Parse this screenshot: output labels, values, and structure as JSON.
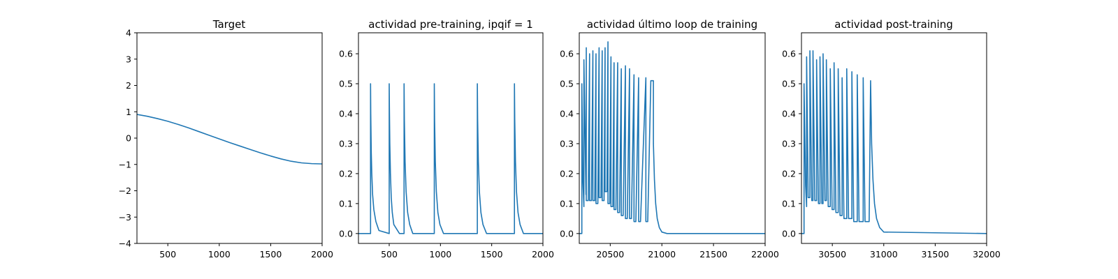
{
  "chart_data": [
    {
      "type": "line",
      "title": "Target",
      "xlim": [
        200,
        2000
      ],
      "ylim": [
        -4,
        4
      ],
      "xticks": [
        500,
        1000,
        1500,
        2000
      ],
      "yticks": [
        -4,
        -3,
        -2,
        -1,
        0,
        1,
        2,
        3,
        4
      ],
      "xtick_labels": [
        "500",
        "1000",
        "1500",
        "2000"
      ],
      "ytick_labels": [
        "−4",
        "−3",
        "−2",
        "−1",
        "0",
        "1",
        "2",
        "3",
        "4"
      ],
      "color": "#1f77b4",
      "series": [
        {
          "x": [
            200,
            300,
            400,
            500,
            600,
            700,
            800,
            900,
            1000,
            1100,
            1200,
            1300,
            1400,
            1500,
            1600,
            1700,
            1800,
            1900,
            2000
          ],
          "y": [
            0.9,
            0.83,
            0.74,
            0.64,
            0.52,
            0.39,
            0.25,
            0.11,
            -0.03,
            -0.17,
            -0.3,
            -0.43,
            -0.56,
            -0.68,
            -0.79,
            -0.88,
            -0.94,
            -0.97,
            -0.98
          ]
        }
      ]
    },
    {
      "type": "line",
      "title": "actividad pre-training, ipqif = 1",
      "xlim": [
        200,
        2000
      ],
      "ylim": [
        -0.033,
        0.67
      ],
      "xticks": [
        500,
        1000,
        1500,
        2000
      ],
      "yticks": [
        0.0,
        0.1,
        0.2,
        0.3,
        0.4,
        0.5,
        0.6
      ],
      "xtick_labels": [
        "500",
        "1000",
        "1500",
        "2000"
      ],
      "ytick_labels": [
        "0.0",
        "0.1",
        "0.2",
        "0.3",
        "0.4",
        "0.5",
        "0.6"
      ],
      "color": "#1f77b4",
      "series": [
        {
          "x": [
            200,
            318,
            318,
            320,
            325,
            330,
            338,
            350,
            370,
            400,
            500,
            500,
            502,
            506,
            512,
            520,
            530,
            545,
            600,
            645,
            645,
            648,
            655,
            665,
            680,
            700,
            730,
            940,
            940,
            943,
            950,
            960,
            975,
            995,
            1030,
            1360,
            1360,
            1363,
            1370,
            1380,
            1395,
            1415,
            1450,
            1722,
            1722,
            1725,
            1732,
            1742,
            1757,
            1777,
            1810,
            2000
          ],
          "y": [
            0.0,
            0.0,
            0.5,
            0.4,
            0.27,
            0.2,
            0.13,
            0.08,
            0.04,
            0.01,
            0.0,
            0.5,
            0.42,
            0.3,
            0.2,
            0.12,
            0.07,
            0.03,
            0.0,
            0.0,
            0.5,
            0.38,
            0.24,
            0.14,
            0.07,
            0.03,
            0.0,
            0.0,
            0.5,
            0.38,
            0.24,
            0.14,
            0.07,
            0.03,
            0.0,
            0.0,
            0.5,
            0.38,
            0.24,
            0.14,
            0.07,
            0.03,
            0.0,
            0.0,
            0.5,
            0.38,
            0.24,
            0.14,
            0.07,
            0.03,
            0.0,
            0.0
          ]
        }
      ]
    },
    {
      "type": "line",
      "title": "actividad último loop de training",
      "xlim": [
        20200,
        22000
      ],
      "ylim": [
        -0.033,
        0.67
      ],
      "xticks": [
        20500,
        21000,
        21500,
        22000
      ],
      "yticks": [
        0.0,
        0.1,
        0.2,
        0.3,
        0.4,
        0.5,
        0.6
      ],
      "xtick_labels": [
        "20500",
        "21000",
        "21500",
        "22000"
      ],
      "ytick_labels": [
        "0.0",
        "0.1",
        "0.2",
        "0.3",
        "0.4",
        "0.5",
        "0.6"
      ],
      "color": "#1f77b4",
      "series": [
        {
          "x": [
            20200,
            20225,
            20225,
            20235,
            20245,
            20245,
            20265,
            20268,
            20268,
            20287,
            20300,
            20300,
            20318,
            20332,
            20332,
            20350,
            20362,
            20362,
            20380,
            20392,
            20392,
            20410,
            20422,
            20422,
            20440,
            20450,
            20450,
            20468,
            20478,
            20478,
            20495,
            20507,
            20507,
            20525,
            20537,
            20537,
            20555,
            20572,
            20572,
            20590,
            20607,
            20607,
            20625,
            20647,
            20647,
            20665,
            20687,
            20687,
            20705,
            20730,
            20730,
            20748,
            20775,
            20775,
            20793,
            20845,
            20845,
            20863,
            20893,
            20918,
            20918,
            20928,
            20940,
            20955,
            20975,
            21000,
            21050,
            22000
          ],
          "y": [
            0.0,
            0.0,
            0.5,
            0.18,
            0.09,
            0.58,
            0.13,
            0.62,
            0.11,
            0.11,
            0.6,
            0.11,
            0.11,
            0.61,
            0.11,
            0.11,
            0.6,
            0.1,
            0.1,
            0.62,
            0.12,
            0.12,
            0.61,
            0.11,
            0.11,
            0.62,
            0.14,
            0.14,
            0.64,
            0.1,
            0.1,
            0.59,
            0.09,
            0.09,
            0.57,
            0.08,
            0.08,
            0.57,
            0.07,
            0.07,
            0.55,
            0.06,
            0.06,
            0.56,
            0.05,
            0.05,
            0.55,
            0.05,
            0.05,
            0.53,
            0.04,
            0.04,
            0.52,
            0.04,
            0.04,
            0.52,
            0.04,
            0.04,
            0.51,
            0.51,
            0.3,
            0.18,
            0.1,
            0.05,
            0.02,
            0.005,
            0.0,
            0.0
          ]
        }
      ]
    },
    {
      "type": "line",
      "title": "actividad post-training",
      "xlim": [
        30200,
        32000
      ],
      "ylim": [
        -0.033,
        0.67
      ],
      "xticks": [
        30500,
        31000,
        31500,
        32000
      ],
      "yticks": [
        0.0,
        0.1,
        0.2,
        0.3,
        0.4,
        0.5,
        0.6
      ],
      "xtick_labels": [
        "30500",
        "31000",
        "31500",
        "32000"
      ],
      "ytick_labels": [
        "0.0",
        "0.1",
        "0.2",
        "0.3",
        "0.4",
        "0.5",
        "0.6"
      ],
      "color": "#1f77b4",
      "series": [
        {
          "x": [
            30200,
            30225,
            30225,
            30240,
            30250,
            30250,
            30265,
            30282,
            30282,
            30300,
            30312,
            30312,
            30330,
            30347,
            30347,
            30365,
            30380,
            30380,
            30398,
            30410,
            30410,
            30428,
            30442,
            30442,
            30460,
            30480,
            30480,
            30498,
            30517,
            30517,
            30535,
            30557,
            30557,
            30575,
            30595,
            30595,
            30613,
            30640,
            30640,
            30658,
            30690,
            30690,
            30708,
            30742,
            30742,
            30760,
            30800,
            30800,
            30818,
            30858,
            30872,
            30872,
            30882,
            30895,
            30910,
            30930,
            30960,
            31000,
            32000
          ],
          "y": [
            0.0,
            0.0,
            0.5,
            0.16,
            0.09,
            0.59,
            0.12,
            0.12,
            0.61,
            0.11,
            0.11,
            0.61,
            0.11,
            0.11,
            0.58,
            0.1,
            0.1,
            0.59,
            0.1,
            0.1,
            0.6,
            0.11,
            0.11,
            0.58,
            0.09,
            0.09,
            0.55,
            0.08,
            0.08,
            0.57,
            0.07,
            0.07,
            0.55,
            0.06,
            0.06,
            0.52,
            0.05,
            0.05,
            0.55,
            0.05,
            0.05,
            0.54,
            0.04,
            0.04,
            0.53,
            0.04,
            0.04,
            0.52,
            0.04,
            0.04,
            0.51,
            0.51,
            0.3,
            0.18,
            0.1,
            0.05,
            0.02,
            0.005,
            0.0
          ]
        }
      ]
    }
  ]
}
